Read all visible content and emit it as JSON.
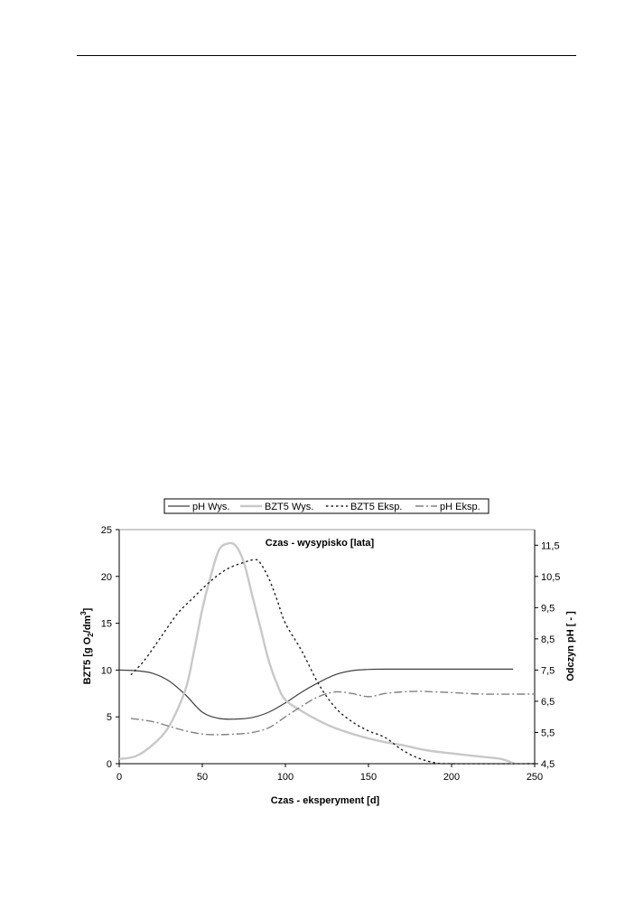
{
  "colors": {
    "ph_wys": "#404040",
    "bzt5_wys": "#c8c8c8",
    "bzt5_eksp": "#202020",
    "ph_eksp": "#808080",
    "axis": "#000000"
  },
  "chart_data": {
    "type": "line",
    "title": "",
    "secondary_x_title": "Czas - wysypisko [lata]",
    "xlabel": "Czas - eksperyment [d]",
    "ylabel": "BZT5 [g O2/dm3]",
    "ylabel_parts": {
      "main": "BZT5 [g O",
      "sub1": "2",
      "mid": "/dm",
      "sup": "3",
      "end": "]"
    },
    "y2label": "Odczyn pH [ - ]",
    "xlim": [
      0,
      250
    ],
    "ylim": [
      0,
      25
    ],
    "y2lim": [
      4.5,
      12
    ],
    "x_ticks": [
      "0",
      "50",
      "100",
      "150",
      "200",
      "250"
    ],
    "x_tick_values": [
      0,
      50,
      100,
      150,
      200,
      250
    ],
    "y_ticks": [
      "0",
      "5",
      "10",
      "15",
      "20",
      "25"
    ],
    "y_tick_values": [
      0,
      5,
      10,
      15,
      20,
      25
    ],
    "y2_ticks": [
      "4,5",
      "5,5",
      "6,5",
      "7,5",
      "8,5",
      "9,5",
      "10,5",
      "11,5"
    ],
    "y2_tick_values": [
      4.5,
      5.5,
      6.5,
      7.5,
      8.5,
      9.5,
      10.5,
      11.5
    ],
    "legend_position": "top",
    "series": [
      {
        "name": "pH Wys.",
        "axis": "y2",
        "style": "solid",
        "x": [
          0,
          10,
          20,
          30,
          40,
          50,
          60,
          70,
          80,
          90,
          100,
          110,
          120,
          130,
          140,
          150,
          160,
          170,
          200,
          237
        ],
        "y": [
          7.5,
          7.48,
          7.4,
          7.15,
          6.7,
          6.15,
          5.95,
          5.93,
          5.98,
          6.15,
          6.45,
          6.8,
          7.1,
          7.35,
          7.48,
          7.52,
          7.53,
          7.53,
          7.53,
          7.53
        ]
      },
      {
        "name": "BZT5 Wys.",
        "axis": "y",
        "style": "solid-thick",
        "x": [
          0,
          10,
          20,
          30,
          40,
          45,
          50,
          55,
          60,
          65,
          70,
          75,
          80,
          85,
          90,
          95,
          100,
          110,
          120,
          130,
          140,
          150,
          160,
          170,
          180,
          190,
          200,
          210,
          220,
          230,
          238
        ],
        "y": [
          0.5,
          0.8,
          2.0,
          4.0,
          8.0,
          12.0,
          16.5,
          20.0,
          22.8,
          23.5,
          23.3,
          21.5,
          18.0,
          14.5,
          11.0,
          8.5,
          6.8,
          5.6,
          4.6,
          3.8,
          3.2,
          2.7,
          2.3,
          2.0,
          1.6,
          1.3,
          1.1,
          0.9,
          0.7,
          0.5,
          0.0
        ]
      },
      {
        "name": "BZT5 Eksp.",
        "axis": "y",
        "style": "dotted",
        "x": [
          7,
          15,
          25,
          35,
          45,
          55,
          65,
          75,
          82,
          85,
          90,
          95,
          100,
          110,
          120,
          130,
          140,
          150,
          160,
          170,
          180,
          190,
          200,
          250
        ],
        "y": [
          9.5,
          11.0,
          13.5,
          16.0,
          17.8,
          19.5,
          20.8,
          21.5,
          21.8,
          21.4,
          19.8,
          17.5,
          15.0,
          12.0,
          8.5,
          6.0,
          4.5,
          3.5,
          2.8,
          1.5,
          0.6,
          0.1,
          0.0,
          0.0
        ]
      },
      {
        "name": "pH Eksp.",
        "axis": "y2",
        "style": "dash-dot",
        "x": [
          7,
          20,
          30,
          40,
          50,
          60,
          70,
          80,
          90,
          100,
          110,
          120,
          130,
          140,
          150,
          160,
          170,
          180,
          190,
          200,
          210,
          220,
          240,
          250
        ],
        "y": [
          5.95,
          5.85,
          5.7,
          5.55,
          5.45,
          5.43,
          5.45,
          5.5,
          5.65,
          6.0,
          6.35,
          6.65,
          6.8,
          6.75,
          6.65,
          6.75,
          6.8,
          6.82,
          6.8,
          6.78,
          6.75,
          6.73,
          6.73,
          6.73
        ]
      }
    ]
  }
}
